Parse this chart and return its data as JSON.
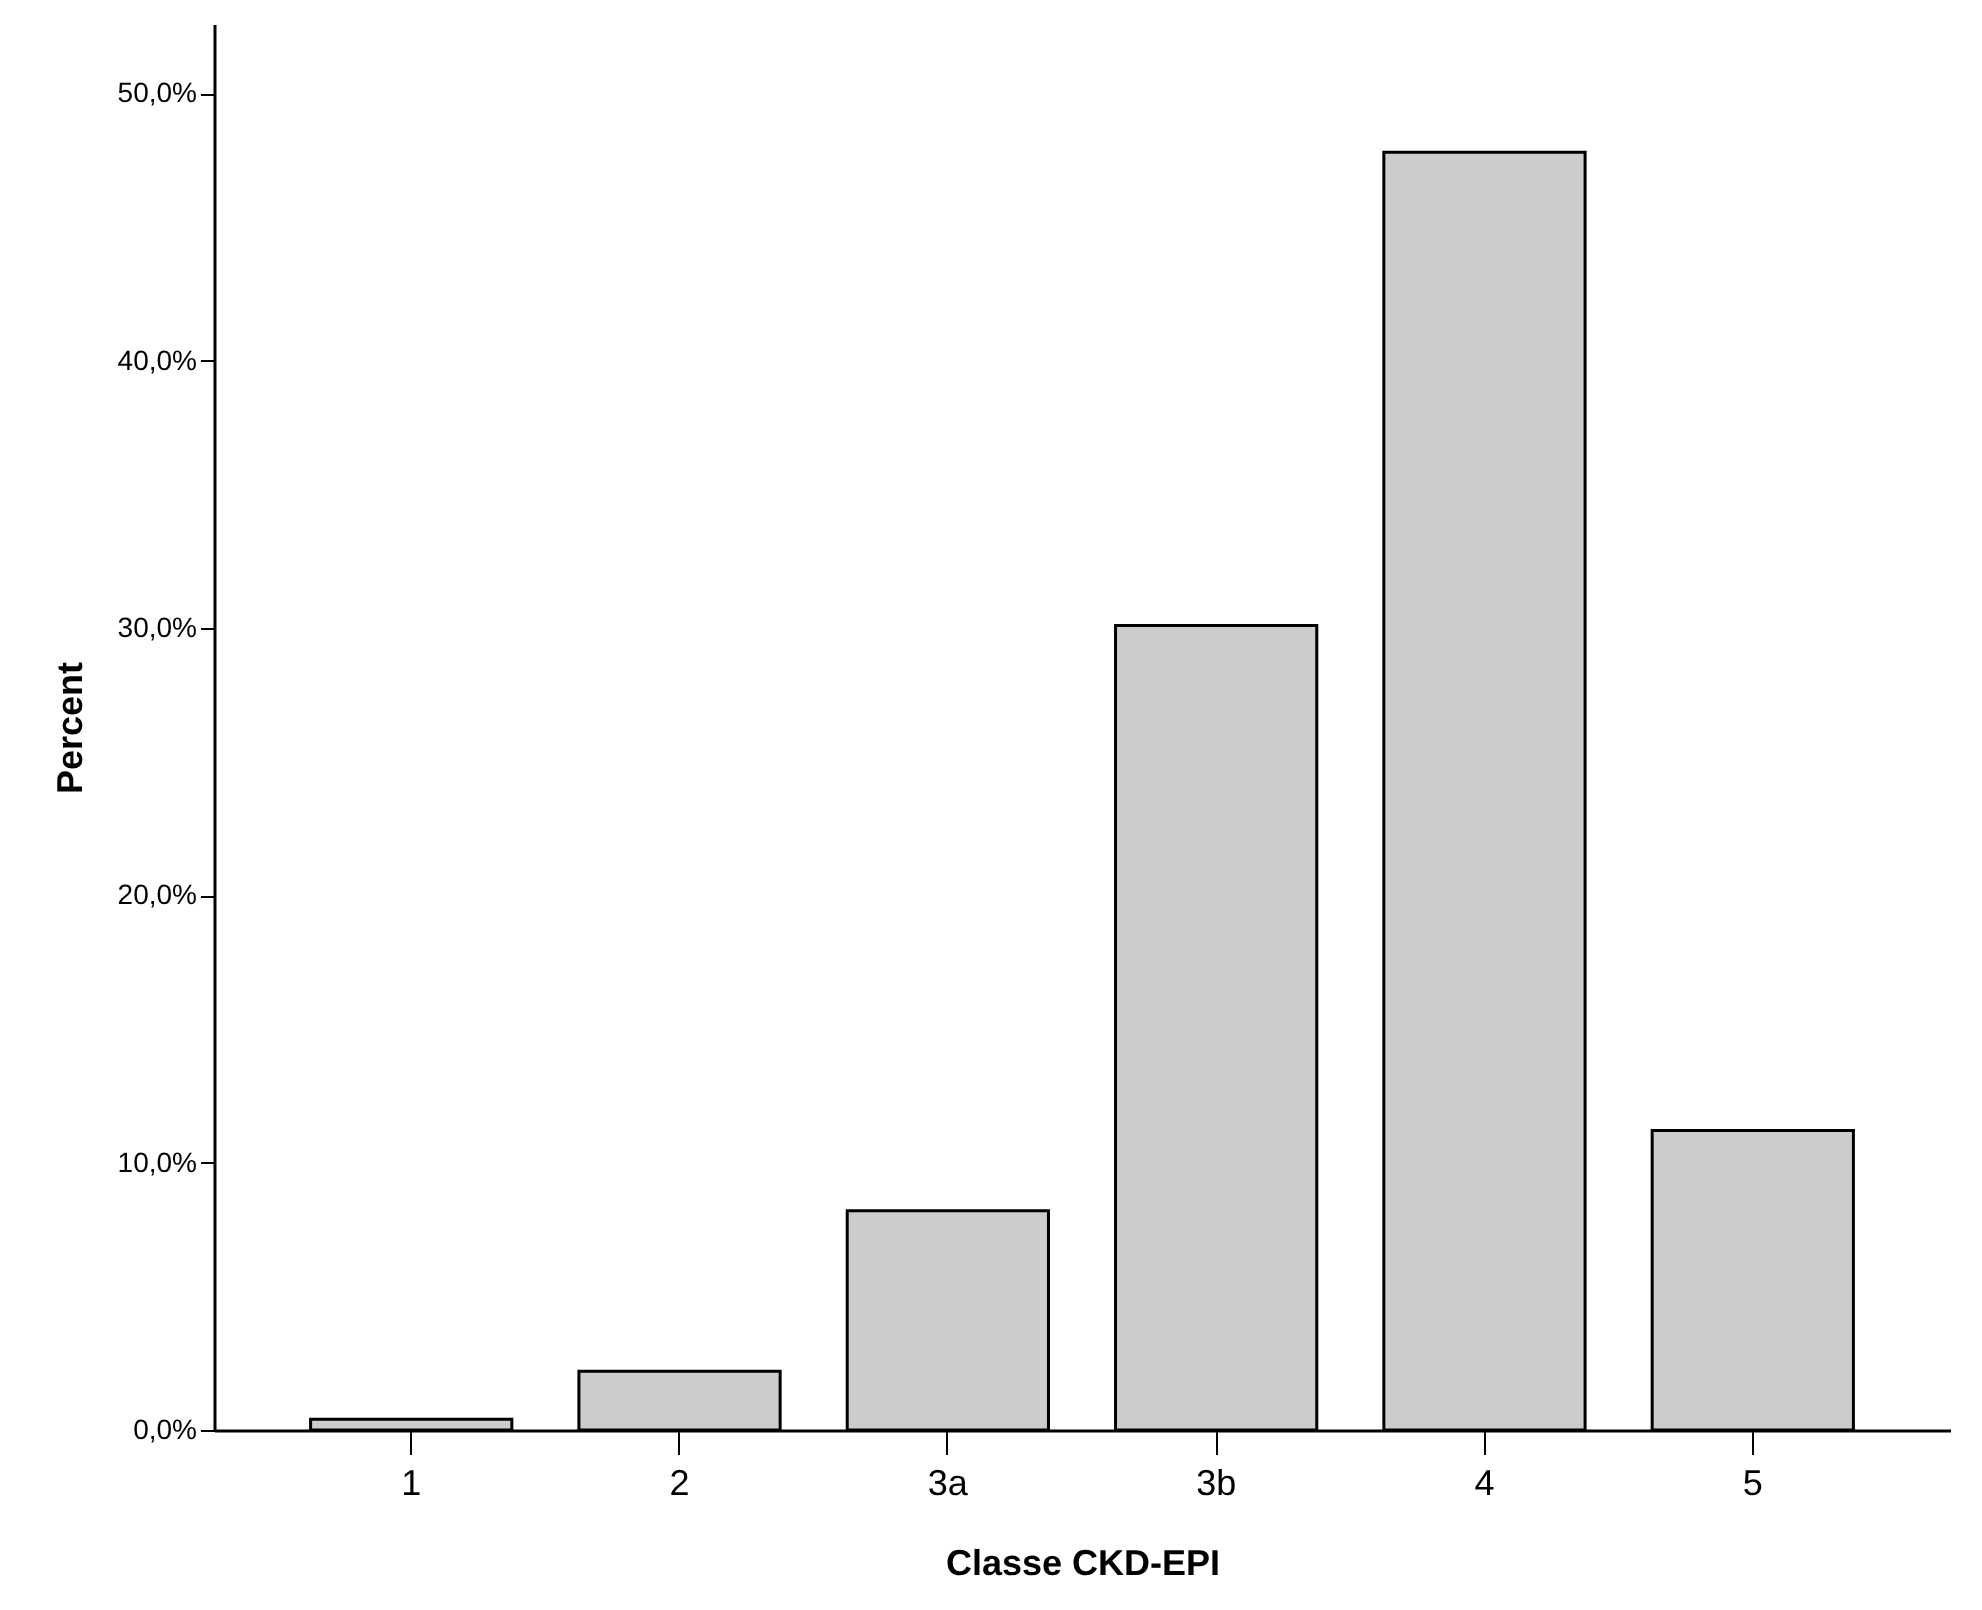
{
  "chart_data": {
    "type": "bar",
    "xlabel": "Classe CKD-EPI",
    "ylabel": "Percent",
    "categories": [
      "1",
      "2",
      "3a",
      "3b",
      "4",
      "5"
    ],
    "values": [
      0.4,
      2.2,
      8.2,
      30.1,
      47.8,
      11.2
    ],
    "color": "#cccccc",
    "ylim": [
      0,
      52.6
    ],
    "yticks": [
      {
        "value": 0,
        "label": "0,0%"
      },
      {
        "value": 10,
        "label": "10,0%"
      },
      {
        "value": 20,
        "label": "20,0%"
      },
      {
        "value": 30,
        "label": "30,0%"
      },
      {
        "value": 40,
        "label": "40,0%"
      },
      {
        "value": 50,
        "label": "50,0%"
      }
    ],
    "grid": false
  }
}
